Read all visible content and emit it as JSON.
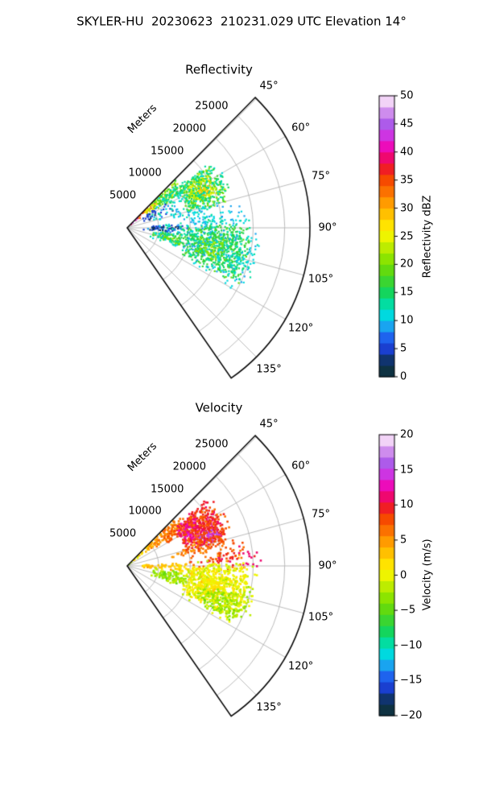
{
  "figure": {
    "title": "SKYLER-HU  20230623  210231.029 UTC Elevation 14°",
    "background": "#ffffff",
    "grid_color": "#b3b3b3",
    "frame_color": "#000000"
  },
  "colormap": {
    "stops": [
      [
        0.0,
        "#0f1270"
      ],
      [
        0.035,
        "#0d4a1f"
      ],
      [
        0.07,
        "#112b8f"
      ],
      [
        0.1,
        "#1a3fd0"
      ],
      [
        0.14,
        "#1e63ee"
      ],
      [
        0.18,
        "#19a4f0"
      ],
      [
        0.215,
        "#00d8e6"
      ],
      [
        0.25,
        "#00e0b4"
      ],
      [
        0.29,
        "#0ad568"
      ],
      [
        0.335,
        "#35d435"
      ],
      [
        0.38,
        "#62da0f"
      ],
      [
        0.42,
        "#8ce400"
      ],
      [
        0.46,
        "#bdec00"
      ],
      [
        0.5,
        "#eef400"
      ],
      [
        0.54,
        "#ffe300"
      ],
      [
        0.58,
        "#ffc000"
      ],
      [
        0.62,
        "#ff9b00"
      ],
      [
        0.66,
        "#fb7100"
      ],
      [
        0.7,
        "#f64a00"
      ],
      [
        0.73,
        "#f12613"
      ],
      [
        0.76,
        "#ee0f45"
      ],
      [
        0.79,
        "#f00584"
      ],
      [
        0.82,
        "#ec0cba"
      ],
      [
        0.845,
        "#de20d8"
      ],
      [
        0.87,
        "#c243e8"
      ],
      [
        0.9,
        "#ad5bea"
      ],
      [
        0.92,
        "#b96fe9"
      ],
      [
        0.945,
        "#d393ee"
      ],
      [
        0.97,
        "#ecc3f4"
      ],
      [
        1.0,
        "#fdf2fd"
      ]
    ],
    "levels": 25
  },
  "chart_data": [
    {
      "type": "radar-sector-scatter",
      "title": "Reflectivity",
      "radial_label": "Meters",
      "range_ticks_m": [
        5000,
        10000,
        15000,
        20000,
        25000
      ],
      "azimuth_ticks_deg": [
        45,
        60,
        75,
        90,
        105,
        120,
        135
      ],
      "azimuth_span_deg": [
        44.5,
        145.3
      ],
      "max_range_m": 29000,
      "colorbar": {
        "label": "Reflectivity dBZ",
        "ticks": [
          0,
          5,
          10,
          15,
          20,
          25,
          30,
          35,
          40,
          45,
          50
        ],
        "vmin": 0,
        "vmax": 50
      },
      "echoes": [
        {
          "az": [
            44.5,
            50.5
          ],
          "r": [
            600,
            3600
          ],
          "v": 41,
          "jit": 5,
          "fill": 0.9
        },
        {
          "az": [
            44.5,
            49.0
          ],
          "r": [
            1100,
            2900
          ],
          "v": 45,
          "jit": 3,
          "fill": 0.8
        },
        {
          "az": [
            44.5,
            53.5
          ],
          "r": [
            2000,
            6800
          ],
          "v": 33,
          "jit": 5,
          "fill": 0.75
        },
        {
          "az": [
            44.5,
            56.0
          ],
          "r": [
            3600,
            9800
          ],
          "v": 25,
          "jit": 4,
          "fill": 0.7
        },
        {
          "az": [
            44.5,
            58.5
          ],
          "r": [
            5200,
            10800
          ],
          "v": 19,
          "jit": 4,
          "fill": 0.7
        },
        {
          "az": [
            46.0,
            61.0
          ],
          "r": [
            6000,
            11500
          ],
          "v": 13,
          "jit": 3,
          "fill": 0.35
        },
        {
          "az": [
            55.0,
            71.0
          ],
          "r": [
            2800,
            8200
          ],
          "v": 7,
          "jit": 5,
          "fill": 0.3
        },
        {
          "az": [
            58.0,
            72.0
          ],
          "r": [
            2200,
            6200
          ],
          "v": 4,
          "jit": 3,
          "fill": 0.25
        },
        {
          "az": [
            60.0,
            79.0
          ],
          "r": [
            4000,
            9200
          ],
          "v": 11,
          "jit": 4,
          "fill": 0.22
        },
        {
          "az": [
            52.0,
            76.0
          ],
          "r": [
            9800,
            16800
          ],
          "v": 19,
          "jit": 4,
          "fill": 0.8
        },
        {
          "az": [
            55.0,
            71.0
          ],
          "r": [
            11000,
            15800
          ],
          "v": 24,
          "jit": 3,
          "fill": 0.55
        },
        {
          "az": [
            61.0,
            67.5
          ],
          "r": [
            12600,
            14800
          ],
          "v": 29,
          "jit": 2,
          "fill": 0.5
        },
        {
          "az": [
            50.0,
            79.0
          ],
          "r": [
            9000,
            17800
          ],
          "v": 13,
          "jit": 3,
          "fill": 0.3
        },
        {
          "az": [
            72.0,
            80.5
          ],
          "r": [
            7000,
            12800
          ],
          "v": 12,
          "jit": 3,
          "fill": 0.3
        },
        {
          "az": [
            75.0,
            93.0
          ],
          "r": [
            9000,
            19500
          ],
          "v": 10,
          "jit": 3,
          "fill": 0.13
        },
        {
          "az": [
            80.0,
            88.5
          ],
          "r": [
            10000,
            16500
          ],
          "v": 12,
          "jit": 3,
          "fill": 0.2
        },
        {
          "az": [
            86.0,
            97.5
          ],
          "r": [
            2000,
            9800
          ],
          "v": 6,
          "jit": 5,
          "fill": 0.55
        },
        {
          "az": [
            88.0,
            95.5
          ],
          "r": [
            3000,
            8200
          ],
          "v": 2,
          "jit": 2,
          "fill": 0.3
        },
        {
          "az": [
            85.0,
            96.5
          ],
          "r": [
            4000,
            9800
          ],
          "v": 12,
          "jit": 4,
          "fill": 0.25
        },
        {
          "az": [
            90.0,
            98.5
          ],
          "r": [
            8000,
            11500
          ],
          "v": 15,
          "jit": 4,
          "fill": 0.3
        },
        {
          "az": [
            96.0,
            110.5
          ],
          "r": [
            4000,
            9800
          ],
          "v": 17,
          "jit": 3,
          "fill": 0.75
        },
        {
          "az": [
            98.0,
            108.5
          ],
          "r": [
            5200,
            8800
          ],
          "v": 20,
          "jit": 2,
          "fill": 0.5
        },
        {
          "az": [
            95.0,
            112.5
          ],
          "r": [
            3600,
            10200
          ],
          "v": 12,
          "jit": 3,
          "fill": 0.25
        },
        {
          "az": [
            88.0,
            117.5
          ],
          "r": [
            9500,
            19800
          ],
          "v": 16,
          "jit": 3,
          "fill": 0.75
        },
        {
          "az": [
            97.0,
            110.5
          ],
          "r": [
            11000,
            15800
          ],
          "v": 21,
          "jit": 2,
          "fill": 0.5
        },
        {
          "az": [
            85.0,
            120.5
          ],
          "r": [
            9000,
            21200
          ],
          "v": 11,
          "jit": 3,
          "fill": 0.18
        },
        {
          "az": [
            100.0,
            116.5
          ],
          "r": [
            17000,
            21200
          ],
          "v": 12,
          "jit": 3,
          "fill": 0.2
        }
      ]
    },
    {
      "type": "radar-sector-scatter",
      "title": "Velocity",
      "radial_label": "Meters",
      "range_ticks_m": [
        5000,
        10000,
        15000,
        20000,
        25000
      ],
      "azimuth_ticks_deg": [
        45,
        60,
        75,
        90,
        105,
        120,
        135
      ],
      "azimuth_span_deg": [
        44.5,
        145.3
      ],
      "max_range_m": 29000,
      "colorbar": {
        "label": "Velocity (m/s)",
        "ticks": [
          -20,
          -15,
          -10,
          -5,
          0,
          5,
          10,
          15,
          20
        ],
        "vmin": -20,
        "vmax": 20
      },
      "echoes": [
        {
          "az": [
            44.5,
            50.0
          ],
          "r": [
            300,
            2600
          ],
          "v": -2,
          "jit": 2.5,
          "fill": 0.85
        },
        {
          "az": [
            44.5,
            53.5
          ],
          "r": [
            1000,
            6200
          ],
          "v": 2,
          "jit": 2,
          "fill": 0.9
        },
        {
          "az": [
            44.5,
            57.0
          ],
          "r": [
            4000,
            10800
          ],
          "v": 5,
          "jit": 1.8,
          "fill": 0.9
        },
        {
          "az": [
            46.0,
            61.0
          ],
          "r": [
            7000,
            11800
          ],
          "v": 7,
          "jit": 1.8,
          "fill": 0.8
        },
        {
          "az": [
            50.0,
            76.0
          ],
          "r": [
            9500,
            16800
          ],
          "v": 10,
          "jit": 2,
          "fill": 0.95
        },
        {
          "az": [
            52.0,
            70.0
          ],
          "r": [
            9500,
            13500
          ],
          "v": 12,
          "jit": 2,
          "fill": 0.8
        },
        {
          "az": [
            66.0,
            74.5
          ],
          "r": [
            12000,
            15800
          ],
          "v": 15,
          "jit": 2,
          "fill": 0.7
        },
        {
          "az": [
            50.0,
            79.0
          ],
          "r": [
            9000,
            17800
          ],
          "v": 8,
          "jit": 2,
          "fill": 0.45
        },
        {
          "az": [
            72.0,
            81.0
          ],
          "r": [
            7000,
            12800
          ],
          "v": 6,
          "jit": 2,
          "fill": 0.4
        },
        {
          "az": [
            75.0,
            93.0
          ],
          "r": [
            9000,
            19500
          ],
          "v": 7,
          "jit": 2.5,
          "fill": 0.16
        },
        {
          "az": [
            82.0,
            90.5
          ],
          "r": [
            12000,
            17800
          ],
          "v": 10,
          "jit": 2,
          "fill": 0.25
        },
        {
          "az": [
            80.0,
            92.0
          ],
          "r": [
            17500,
            21500
          ],
          "v": 11,
          "jit": 1.5,
          "fill": 0.12
        },
        {
          "az": [
            86.0,
            97.5
          ],
          "r": [
            2000,
            9800
          ],
          "v": 3,
          "jit": 1.8,
          "fill": 0.8
        },
        {
          "az": [
            90.0,
            98.5
          ],
          "r": [
            8000,
            11500
          ],
          "v": 2,
          "jit": 1.5,
          "fill": 0.5
        },
        {
          "az": [
            96.0,
            110.5
          ],
          "r": [
            4000,
            9800
          ],
          "v": -3,
          "jit": 1.8,
          "fill": 0.85
        },
        {
          "az": [
            98.0,
            108.5
          ],
          "r": [
            5200,
            8800
          ],
          "v": -4,
          "jit": 1.5,
          "fill": 0.6
        },
        {
          "az": [
            95.0,
            112.5
          ],
          "r": [
            3600,
            10200
          ],
          "v": -2,
          "jit": 1.8,
          "fill": 0.3
        },
        {
          "az": [
            88.0,
            117.5
          ],
          "r": [
            9500,
            19800
          ],
          "v": 0.5,
          "jit": 1.8,
          "fill": 0.9
        },
        {
          "az": [
            97.0,
            110.5
          ],
          "r": [
            11000,
            15800
          ],
          "v": 1.5,
          "jit": 1.5,
          "fill": 0.7
        },
        {
          "az": [
            104.0,
            118.5
          ],
          "r": [
            12000,
            19200
          ],
          "v": -3,
          "jit": 1.8,
          "fill": 0.6
        },
        {
          "az": [
            85.0,
            120.5
          ],
          "r": [
            9000,
            21200
          ],
          "v": -1,
          "jit": 2,
          "fill": 0.18
        },
        {
          "az": [
            100.0,
            116.5
          ],
          "r": [
            17000,
            21200
          ],
          "v": -2,
          "jit": 1.8,
          "fill": 0.25
        }
      ]
    }
  ]
}
